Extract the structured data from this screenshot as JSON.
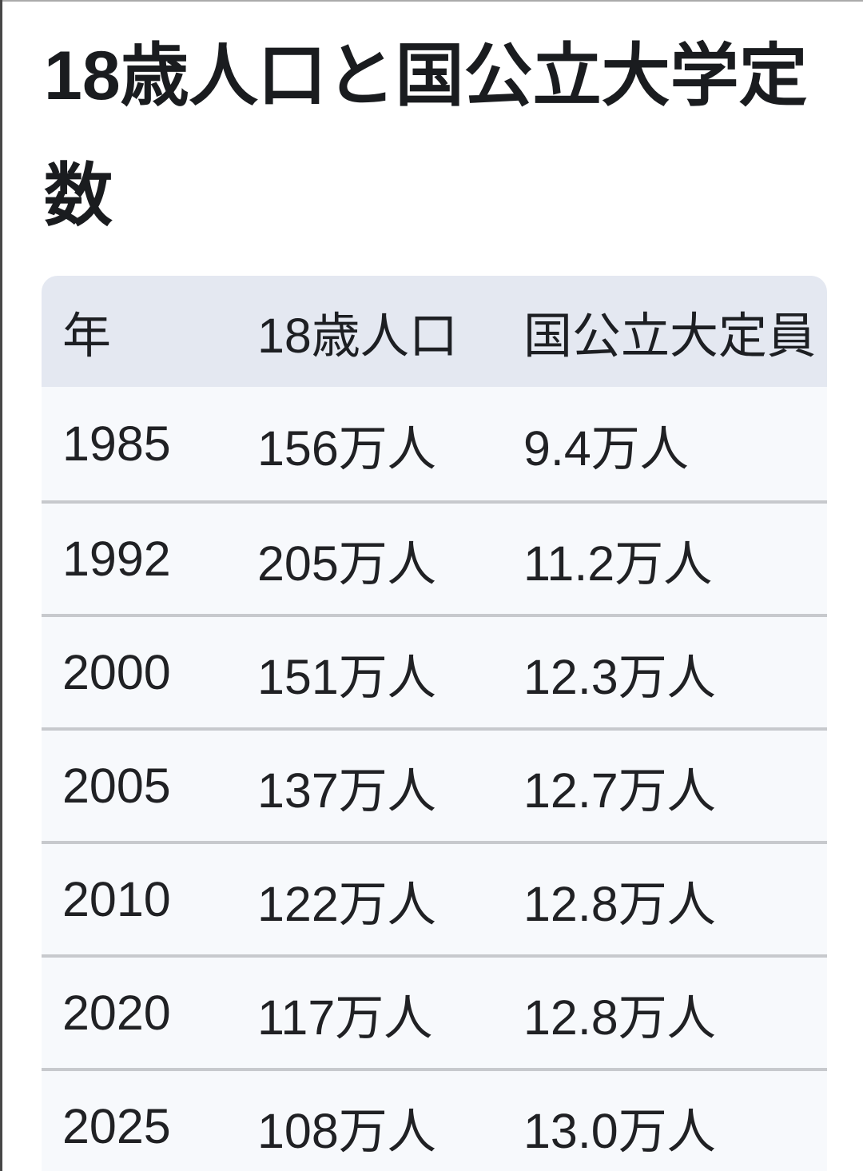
{
  "title": "18歳人口と国公立大学定数",
  "table": {
    "headers": {
      "year": "年",
      "population": "18歳人口",
      "capacity": "国公立大定員"
    },
    "rows": [
      {
        "year": "1985",
        "population": "156万人",
        "capacity": "9.4万人"
      },
      {
        "year": "1992",
        "population": "205万人",
        "capacity": "11.2万人"
      },
      {
        "year": "2000",
        "population": "151万人",
        "capacity": "12.3万人"
      },
      {
        "year": "2005",
        "population": "137万人",
        "capacity": "12.7万人"
      },
      {
        "year": "2010",
        "population": "122万人",
        "capacity": "12.8万人"
      },
      {
        "year": "2020",
        "population": "117万人",
        "capacity": "12.8万人"
      },
      {
        "year": "2025",
        "population": "108万人",
        "capacity": "13.0万人"
      }
    ]
  },
  "colors": {
    "header_bg": "#e4e8f1",
    "row_bg": "#f7f9fc",
    "separator": "#c7c9cd",
    "text": "#1d1f23",
    "edge_bar": "#474747",
    "top_line": "#ababab"
  }
}
